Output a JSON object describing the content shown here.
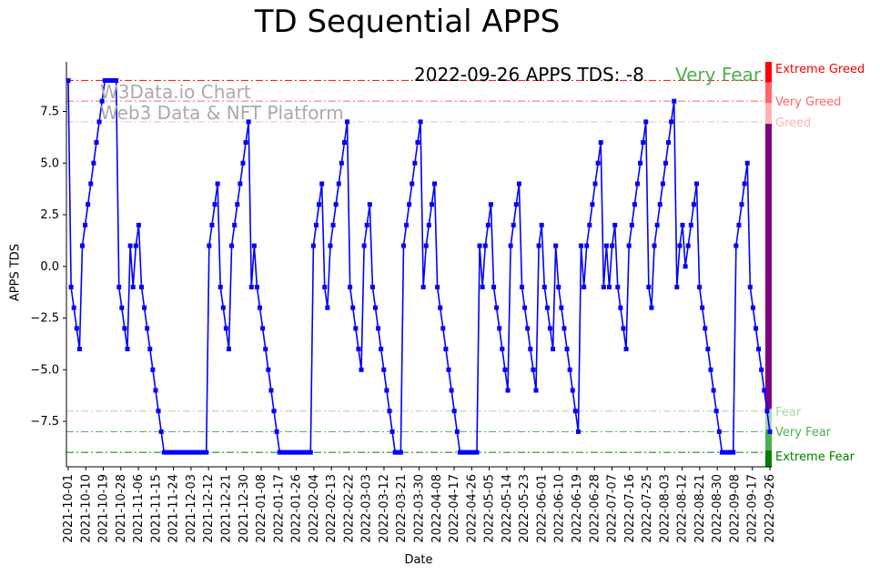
{
  "chart_data": {
    "type": "line",
    "title": "TD Sequential APPS",
    "xlabel": "Date",
    "ylabel": "APPS TDS",
    "ylim": [
      -9.7,
      9.9
    ],
    "yticks": [
      -7.5,
      -5.0,
      -2.5,
      0.0,
      2.5,
      5.0,
      7.5
    ],
    "ytick_labels": [
      "−7.5",
      "−5.0",
      "−2.5",
      "0.0",
      "2.5",
      "5.0",
      "7.5"
    ],
    "x_start": "2021-10-01",
    "x_end": "2022-09-26",
    "xtick_labels": [
      "2021-10-01",
      "2021-10-10",
      "2021-10-19",
      "2021-10-28",
      "2021-11-06",
      "2021-11-15",
      "2021-11-24",
      "2021-12-03",
      "2021-12-12",
      "2021-12-21",
      "2021-12-30",
      "2022-01-08",
      "2022-01-17",
      "2022-01-26",
      "2022-02-04",
      "2022-02-13",
      "2022-02-22",
      "2022-03-03",
      "2022-03-12",
      "2022-03-21",
      "2022-03-30",
      "2022-04-08",
      "2022-04-17",
      "2022-04-26",
      "2022-05-05",
      "2022-05-14",
      "2022-05-23",
      "2022-06-01",
      "2022-06-10",
      "2022-06-19",
      "2022-06-28",
      "2022-07-07",
      "2022-07-16",
      "2022-07-25",
      "2022-08-03",
      "2022-08-12",
      "2022-08-21",
      "2022-08-30",
      "2022-09-08",
      "2022-09-17",
      "2022-09-26"
    ],
    "series": [
      {
        "name": "APPS TDS",
        "color": "#0000ff",
        "values": [
          9,
          -1,
          -2,
          -3,
          -4,
          1,
          2,
          3,
          4,
          5,
          6,
          7,
          8,
          9,
          9,
          9,
          9,
          9,
          -1,
          -2,
          -3,
          -4,
          1,
          -1,
          1,
          2,
          -1,
          -2,
          -3,
          -4,
          -5,
          -6,
          -7,
          -8,
          -9,
          -9,
          -9,
          -9,
          -9,
          -9,
          -9,
          -9,
          -9,
          -9,
          -9,
          -9,
          -9,
          -9,
          -9,
          -9,
          1,
          2,
          3,
          4,
          -1,
          -2,
          -3,
          -4,
          1,
          2,
          3,
          4,
          5,
          6,
          7,
          -1,
          1,
          -1,
          -2,
          -3,
          -4,
          -5,
          -6,
          -7,
          -8,
          -9,
          -9,
          -9,
          -9,
          -9,
          -9,
          -9,
          -9,
          -9,
          -9,
          -9,
          -9,
          1,
          2,
          3,
          4,
          -1,
          -2,
          1,
          2,
          3,
          4,
          5,
          6,
          7,
          -1,
          -2,
          -3,
          -4,
          -5,
          1,
          2,
          3,
          -1,
          -2,
          -3,
          -4,
          -5,
          -6,
          -7,
          -8,
          -9,
          -9,
          -9,
          1,
          2,
          3,
          4,
          5,
          6,
          7,
          -1,
          1,
          2,
          3,
          4,
          -1,
          -2,
          -3,
          -4,
          -5,
          -6,
          -7,
          -8,
          -9,
          -9,
          -9,
          -9,
          -9,
          -9,
          -9,
          1,
          -1,
          1,
          2,
          3,
          -1,
          -2,
          -3,
          -4,
          -5,
          -6,
          1,
          2,
          3,
          4,
          -1,
          -2,
          -3,
          -4,
          -5,
          -6,
          1,
          2,
          -1,
          -2,
          -3,
          -4,
          1,
          -1,
          -2,
          -3,
          -4,
          -5,
          -6,
          -7,
          -8,
          1,
          -1,
          1,
          2,
          3,
          4,
          5,
          6,
          -1,
          1,
          -1,
          1,
          2,
          -1,
          -2,
          -3,
          -4,
          1,
          2,
          3,
          4,
          5,
          6,
          7,
          -1,
          -2,
          1,
          2,
          3,
          4,
          5,
          6,
          7,
          8,
          -1,
          1,
          2,
          0,
          1,
          2,
          3,
          4,
          -1,
          -2,
          -3,
          -4,
          -5,
          -6,
          -7,
          -8,
          -9,
          -9,
          -9,
          -9,
          -9,
          1,
          2,
          3,
          4,
          5,
          -1,
          -2,
          -3,
          -4,
          -5,
          -6,
          -7,
          -8
        ]
      }
    ],
    "levels": [
      {
        "name": "Extreme Greed",
        "value": 9,
        "color": "#ff0000"
      },
      {
        "name": "Very Greed",
        "value": 8,
        "color": "#ff6666"
      },
      {
        "name": "Greed",
        "value": 7,
        "color": "#ffb3b3"
      },
      {
        "name": "Fear",
        "value": -7,
        "color": "#a5d6a7"
      },
      {
        "name": "Very Fear",
        "value": -8,
        "color": "#4caf50"
      },
      {
        "name": "Extreme Fear",
        "value": -9,
        "color": "#008000"
      }
    ],
    "neutral_color": "#800080",
    "annotation_date": "2022-09-26 APPS TDS: -8",
    "annotation_sentiment": "Very Fear",
    "annotation_sentiment_color": "#4caf50",
    "watermark_line1": "W3Data.io Chart",
    "watermark_line2": "Web3 Data & NFT Platform"
  }
}
